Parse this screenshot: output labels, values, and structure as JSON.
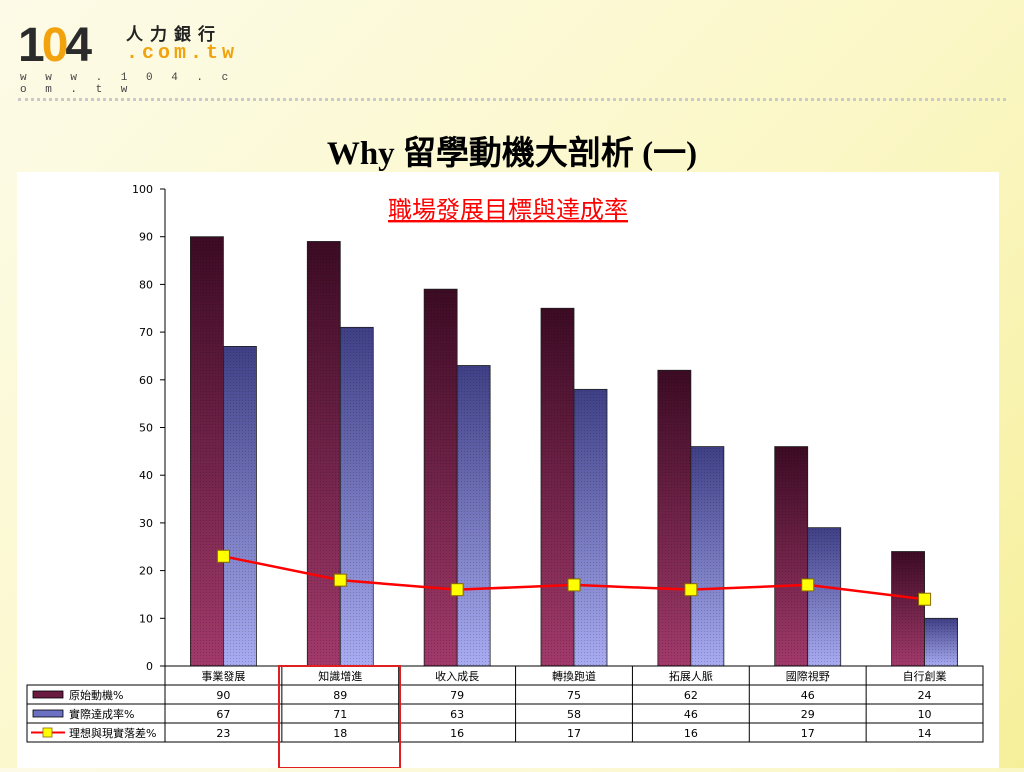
{
  "logo": {
    "number_a": "1",
    "number_o": "0",
    "number_b": "4",
    "chinese": "人力銀行",
    "domain": ".com.tw",
    "url": "w w w . 1 0 4 . c o m . t w"
  },
  "slide_title": "Why 留學動機大剖析 (一)",
  "colors": {
    "series_1": "#6b1a42",
    "series_2": "#6b70c2",
    "series_3_line": "#ff0000",
    "series_3_marker": "#ffff00",
    "highlight_box": "#e02020"
  },
  "chart_data": {
    "type": "bar",
    "title": "職場發展目標與達成率",
    "categories": [
      "事業發展",
      "知識增進",
      "收入成長",
      "轉換跑道",
      "拓展人脈",
      "國際視野",
      "自行創業"
    ],
    "series": [
      {
        "name": "原始動機%",
        "type": "bar",
        "values": [
          90,
          89,
          79,
          75,
          62,
          46,
          24
        ]
      },
      {
        "name": "實際達成率%",
        "type": "bar",
        "values": [
          67,
          71,
          63,
          58,
          46,
          29,
          10
        ]
      },
      {
        "name": "理想與現實落差%",
        "type": "line",
        "values": [
          23,
          18,
          16,
          17,
          16,
          17,
          14
        ]
      }
    ],
    "ylim": [
      0,
      100
    ],
    "yticks": [
      0,
      10,
      20,
      30,
      40,
      50,
      60,
      70,
      80,
      90,
      100
    ],
    "grid": false,
    "legend": "data-table-below",
    "highlighted_category": "知識增進"
  }
}
